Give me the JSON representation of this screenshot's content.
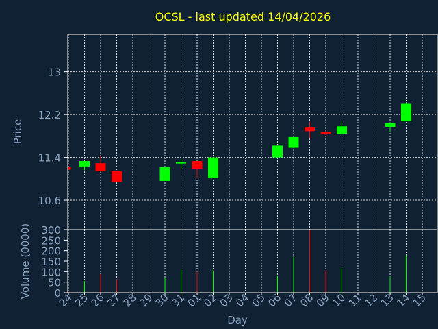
{
  "chart_data": {
    "type": "candlestick",
    "title": "OCSL - last updated 14/04/2026",
    "xlabel": "Day",
    "days": [
      "24",
      "25",
      "26",
      "27",
      "28",
      "29",
      "30",
      "31",
      "01",
      "02",
      "03",
      "04",
      "05",
      "06",
      "07",
      "08",
      "09",
      "10",
      "11",
      "12",
      "13",
      "14",
      "15"
    ],
    "price": {
      "ylabel": "Price",
      "ylim": [
        10.05,
        13.7
      ],
      "ticks": [
        10.6,
        11.4,
        12.2,
        13
      ],
      "tick_labels": [
        "10.6",
        "11.4",
        "12.2",
        "13"
      ],
      "candles": [
        {
          "day": "24",
          "open": 11.22,
          "high": 11.22,
          "low": 11.17,
          "close": 11.17
        },
        {
          "day": "25",
          "open": 11.23,
          "high": 11.34,
          "low": 11.16,
          "close": 11.33
        },
        {
          "day": "26",
          "open": 11.29,
          "high": 11.43,
          "low": 11.13,
          "close": 11.14
        },
        {
          "day": "27",
          "open": 11.14,
          "high": 11.14,
          "low": 10.93,
          "close": 10.94
        },
        {
          "day": "30",
          "open": 10.96,
          "high": 11.22,
          "low": 10.96,
          "close": 11.22
        },
        {
          "day": "31",
          "open": 11.29,
          "high": 11.37,
          "low": 11.2,
          "close": 11.31
        },
        {
          "day": "01",
          "open": 11.33,
          "high": 11.33,
          "low": 11.02,
          "close": 11.19
        },
        {
          "day": "02",
          "open": 11.01,
          "high": 11.4,
          "low": 11.01,
          "close": 11.4
        },
        {
          "day": "06",
          "open": 11.4,
          "high": 11.62,
          "low": 11.38,
          "close": 11.62
        },
        {
          "day": "07",
          "open": 11.58,
          "high": 11.78,
          "low": 11.58,
          "close": 11.78
        },
        {
          "day": "08",
          "open": 11.96,
          "high": 12.07,
          "low": 11.75,
          "close": 11.89
        },
        {
          "day": "09",
          "open": 11.87,
          "high": 11.89,
          "low": 11.82,
          "close": 11.86
        },
        {
          "day": "10",
          "open": 11.84,
          "high": 12.07,
          "low": 11.82,
          "close": 11.98
        },
        {
          "day": "13",
          "open": 11.96,
          "high": 12.06,
          "low": 11.88,
          "close": 12.04
        },
        {
          "day": "14",
          "open": 12.08,
          "high": 12.43,
          "low": 12.08,
          "close": 12.4
        }
      ]
    },
    "volume": {
      "ylabel": "Volume (0000)",
      "ylim": [
        0,
        300
      ],
      "ticks": [
        0,
        50,
        100,
        150,
        200,
        250,
        300
      ],
      "tick_labels": [
        "0",
        "50",
        "100",
        "150",
        "200",
        "250",
        "300"
      ],
      "bars": [
        {
          "day": "24",
          "value": 5
        },
        {
          "day": "25",
          "value": 55
        },
        {
          "day": "26",
          "value": 88
        },
        {
          "day": "27",
          "value": 65
        },
        {
          "day": "30",
          "value": 72
        },
        {
          "day": "31",
          "value": 110
        },
        {
          "day": "01",
          "value": 100
        },
        {
          "day": "02",
          "value": 105
        },
        {
          "day": "06",
          "value": 80
        },
        {
          "day": "07",
          "value": 172
        },
        {
          "day": "08",
          "value": 300
        },
        {
          "day": "09",
          "value": 105
        },
        {
          "day": "10",
          "value": 118
        },
        {
          "day": "13",
          "value": 80
        },
        {
          "day": "14",
          "value": 178
        }
      ]
    },
    "colors": {
      "background": "#0f2133",
      "title": "#ffff00",
      "axis_text": "#8aa3c0",
      "grid": "#ffffff",
      "up": "#00ff00",
      "down": "#ff0000"
    },
    "grid": true
  }
}
